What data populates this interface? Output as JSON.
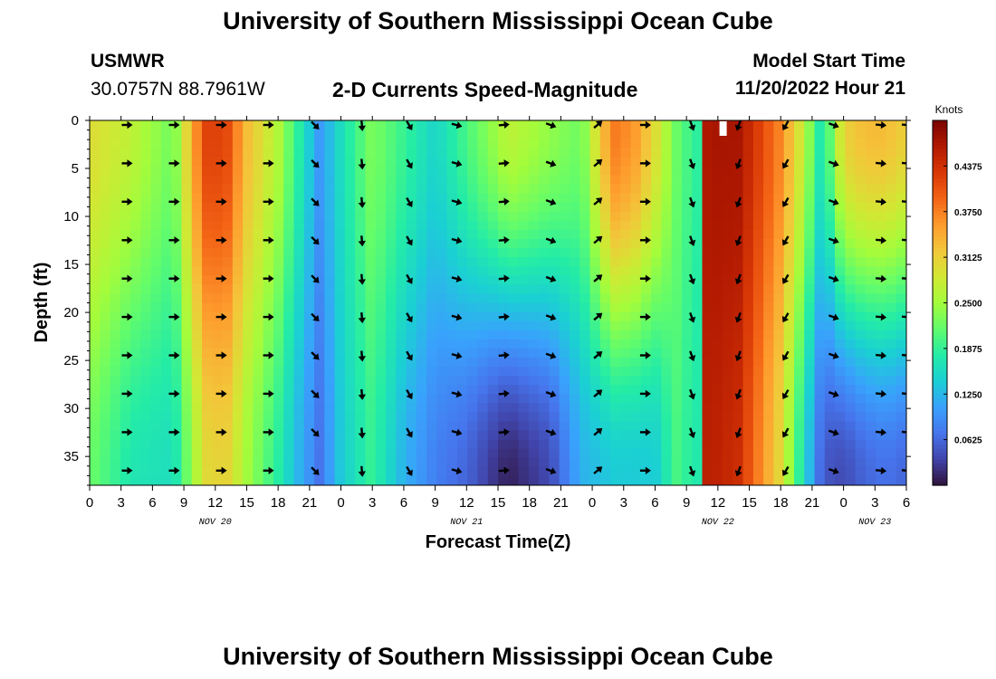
{
  "header": {
    "title": "University of Southern Mississippi Ocean Cube",
    "station": "USMWR",
    "coords": "30.0757N  88.7961W",
    "subtitle": "2-D Currents Speed-Magnitude",
    "model_start_label": "Model Start Time",
    "model_start_value": "11/20/2022 Hour 21"
  },
  "footer": {
    "title": "University of Southern Mississippi Ocean Cube"
  },
  "colors": {
    "speed_ramp": [
      "#30123b",
      "#4145ab",
      "#4675ed",
      "#39a2fc",
      "#1bcfd4",
      "#24eca6",
      "#61fc6c",
      "#a4fc3b",
      "#d1e834",
      "#f3c63a",
      "#fe9b2d",
      "#f36315",
      "#d93806",
      "#b11901",
      "#7a0402"
    ]
  },
  "chart_data": {
    "type": "heatmap",
    "title": "2-D Currents Speed-Magnitude",
    "xlabel": "Forecast Time(Z)",
    "ylabel": "Depth (ft)",
    "x_hours_range": [
      0,
      78
    ],
    "ylim": [
      0,
      38
    ],
    "y_inverted": true,
    "x_tick_hours": [
      0,
      3,
      6,
      9,
      12,
      15,
      18,
      21,
      24,
      27,
      30,
      33,
      36,
      39,
      42,
      45,
      48,
      51,
      54,
      57,
      60,
      63,
      66,
      69,
      72,
      75,
      78
    ],
    "x_tick_labels": [
      "0",
      "3",
      "6",
      "9",
      "12",
      "15",
      "18",
      "21",
      "0",
      "3",
      "6",
      "9",
      "12",
      "15",
      "18",
      "21",
      "0",
      "3",
      "6",
      "9",
      "12",
      "15",
      "18",
      "21",
      "0",
      "3",
      "6"
    ],
    "date_labels": [
      {
        "text": "NOV 20",
        "hour": 12
      },
      {
        "text": "NOV 21",
        "hour": 36
      },
      {
        "text": "NOV 22",
        "hour": 60
      },
      {
        "text": "NOV 23",
        "hour": 75
      }
    ],
    "y_ticks": [
      0,
      5,
      10,
      15,
      20,
      25,
      30,
      35
    ],
    "y_tick_labels": [
      "0",
      "5",
      "10",
      "15",
      "20",
      "25",
      "30",
      "35"
    ],
    "colorbar": {
      "label": "Knots",
      "range": [
        0,
        0.5
      ],
      "ticks": [
        0.0625,
        0.125,
        0.1875,
        0.25,
        0.3125,
        0.375,
        0.4375
      ],
      "tick_labels": [
        "0.0625",
        "0.1250",
        "0.1875",
        "0.2500",
        "0.3125",
        "0.3750",
        "0.4375"
      ]
    },
    "speed_profile_surface": {
      "hours": [
        0,
        4,
        8,
        11,
        13,
        15,
        18,
        20,
        22,
        24,
        27,
        30,
        33,
        36,
        39,
        40,
        44,
        47,
        50,
        52,
        54,
        56,
        58,
        59,
        62,
        66,
        68,
        70,
        72,
        74,
        76,
        78
      ],
      "speed_knots": [
        0.3,
        0.27,
        0.22,
        0.42,
        0.42,
        0.33,
        0.26,
        0.18,
        0.1,
        0.16,
        0.23,
        0.19,
        0.15,
        0.2,
        0.25,
        0.27,
        0.24,
        0.22,
        0.38,
        0.36,
        0.3,
        0.22,
        0.18,
        0.47,
        0.47,
        0.37,
        0.28,
        0.16,
        0.31,
        0.33,
        0.33,
        0.31
      ]
    },
    "speed_profile_bottom": {
      "hours": [
        0,
        4,
        8,
        11,
        13,
        15,
        18,
        20,
        22,
        24,
        27,
        30,
        33,
        36,
        39,
        40,
        44,
        47,
        50,
        52,
        54,
        56,
        58,
        59,
        62,
        66,
        68,
        70,
        72,
        74,
        76,
        78
      ],
      "speed_knots": [
        0.22,
        0.17,
        0.16,
        0.3,
        0.31,
        0.25,
        0.18,
        0.12,
        0.07,
        0.14,
        0.19,
        0.12,
        0.08,
        0.06,
        0.02,
        0.01,
        0.04,
        0.12,
        0.14,
        0.14,
        0.14,
        0.2,
        0.17,
        0.46,
        0.44,
        0.3,
        0.17,
        0.05,
        0.04,
        0.06,
        0.07,
        0.06
      ]
    },
    "vector_hours": [
      3.5,
      8,
      12.5,
      17,
      21.5,
      26,
      30.5,
      35,
      39.5,
      44,
      48.5,
      53,
      57.5,
      62,
      66.5,
      71,
      75.5,
      78
    ],
    "vector_depths": [
      0,
      4,
      8,
      12,
      16,
      20,
      24,
      28,
      32,
      36
    ],
    "vector_direction_deg": [
      180,
      180,
      180,
      180,
      225,
      265,
      240,
      195,
      175,
      200,
      140,
      180,
      250,
      290,
      300,
      200,
      185,
      185
    ],
    "surface_marker_hour": 60.5
  }
}
